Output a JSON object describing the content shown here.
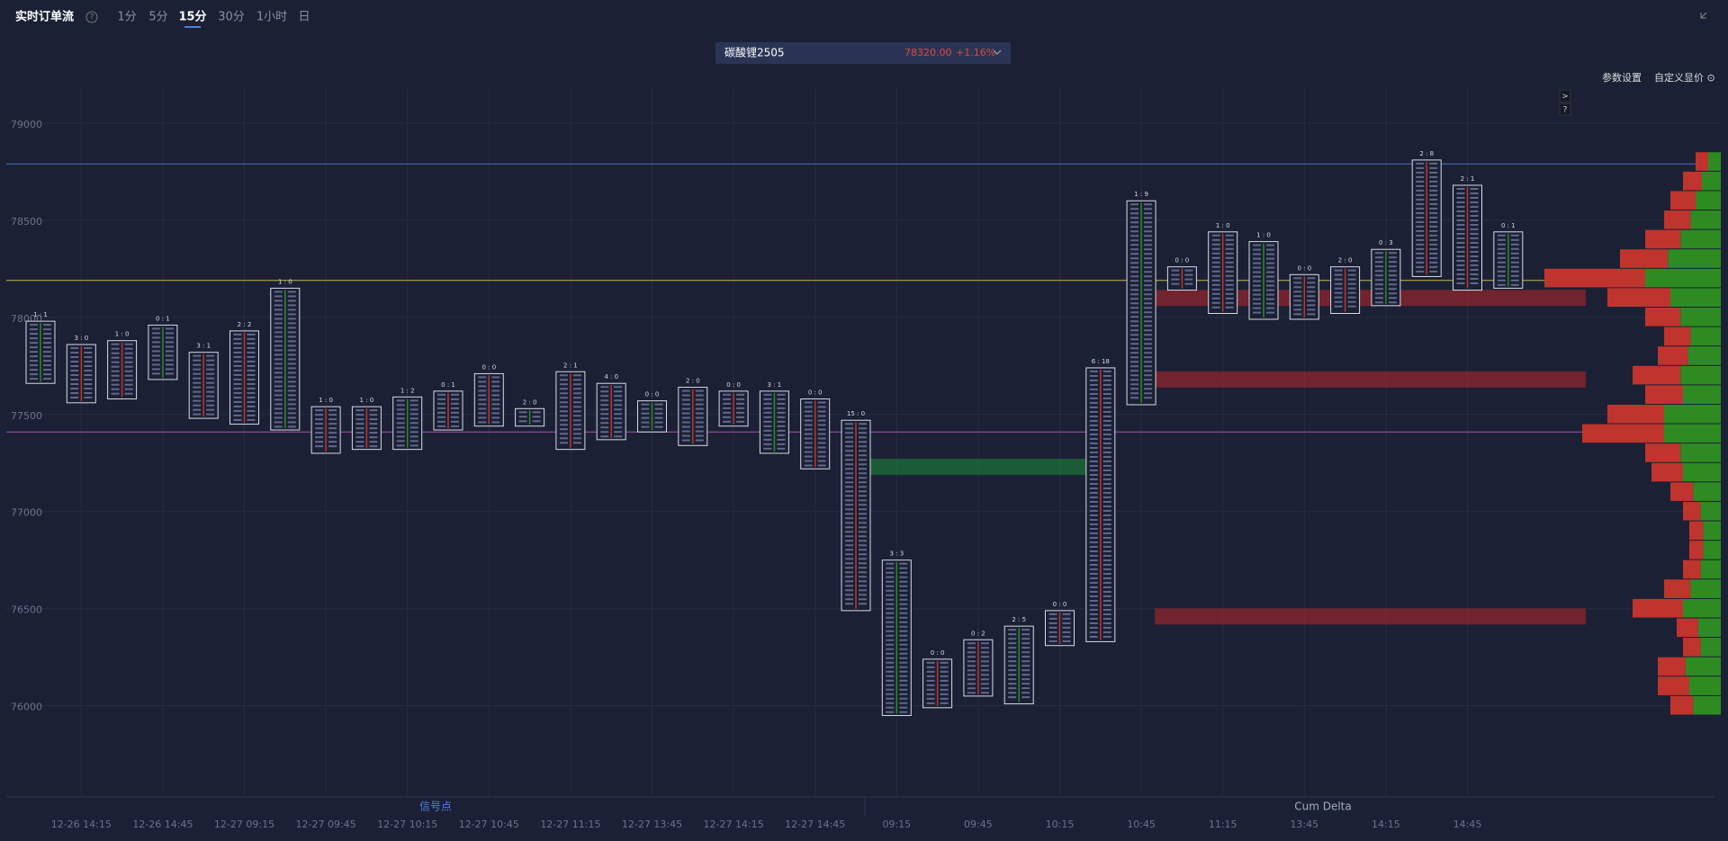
{
  "ui": {
    "title": "实时订单流",
    "help": "?",
    "tabs": [
      "1分",
      "5分",
      "15分",
      "30分",
      "1小时",
      "日"
    ],
    "active_tab": 2,
    "symbol": "碳酸锂2505",
    "price": "78320.00",
    "change": "+1.16%",
    "settings": "参数设置",
    "custom_price": "自定义显价 ⊙",
    "side_buttons": [
      ">",
      "?"
    ],
    "panels": [
      "信号点",
      "Cum Delta"
    ]
  },
  "chart_data": {
    "type": "footprint",
    "categories": [
      null,
      "12-26 14:15",
      null,
      "12-26 14:45",
      null,
      "12-27 09:15",
      null,
      "12-27 09:45",
      null,
      "12-27 10:15",
      null,
      "12-27 10:45",
      null,
      "12-27 11:15",
      null,
      "12-27 13:45",
      null,
      "12-27 14:15",
      null,
      "12-27 14:45",
      null,
      "09:15",
      null,
      "09:45",
      null,
      "10:15",
      null,
      "10:45",
      null,
      "11:15",
      null,
      "13:45",
      null,
      "14:15",
      null,
      "14:45",
      null
    ],
    "high": [
      77980,
      77860,
      77880,
      77960,
      77820,
      77930,
      78150,
      77540,
      77540,
      77590,
      77620,
      77710,
      77530,
      77720,
      77660,
      77570,
      77640,
      77620,
      77620,
      77580,
      77470,
      76750,
      76240,
      76340,
      76410,
      76490,
      77740,
      78600,
      78260,
      78440,
      78390,
      78220,
      78260,
      78350,
      78810,
      78680,
      78440
    ],
    "low": [
      77660,
      77560,
      77580,
      77680,
      77480,
      77450,
      77420,
      77300,
      77320,
      77320,
      77420,
      77440,
      77440,
      77320,
      77370,
      77410,
      77340,
      77440,
      77300,
      77220,
      76490,
      75950,
      75990,
      76050,
      76010,
      76310,
      76330,
      77550,
      78140,
      78020,
      77990,
      77990,
      78020,
      78060,
      78210,
      78140,
      78150
    ],
    "headers": [
      "1 : 1",
      "3 : 0",
      "1 : 0",
      "0 : 1",
      "3 : 1",
      "2 : 2",
      "1 : 0",
      "1 : 0",
      "1 : 0",
      "1 : 2",
      "0 : 1",
      "0 : 0",
      "2 : 0",
      "2 : 1",
      "4 : 0",
      "0 : 0",
      "2 : 0",
      "0 : 0",
      "3 : 1",
      "0 : 0",
      "15 : 0",
      "3 : 3",
      "0 : 0",
      "0 : 2",
      "2 : 5",
      "0 : 0",
      "6 : 18",
      "1 : 9",
      "0 : 0",
      "1 : 0",
      "1 : 0",
      "0 : 0",
      "2 : 0",
      "0 : 3",
      "2 : 8",
      "2 : 1",
      "0 : 1"
    ],
    "ylim": [
      75540,
      79180
    ],
    "yticks": [
      76000,
      76500,
      77000,
      77500,
      78000,
      78500,
      79000
    ],
    "levels": [
      {
        "price": 78790,
        "color": "#4a6fc4"
      },
      {
        "price": 78190,
        "color": "#c9b54a"
      },
      {
        "price": 77410,
        "color": "#b04fb8"
      }
    ],
    "zones": [
      {
        "price": 77230,
        "color": "#1f8a3a"
      },
      {
        "price": 78100,
        "color": "#b8262b"
      },
      {
        "price": 77680,
        "color": "#b8262b"
      },
      {
        "price": 76460,
        "color": "#b8262b"
      }
    ],
    "profile": {
      "prices": [
        76000,
        76100,
        76200,
        76300,
        76400,
        76500,
        76600,
        76700,
        76800,
        76900,
        77000,
        77100,
        77200,
        77300,
        77400,
        77500,
        77600,
        77700,
        77800,
        77900,
        78000,
        78100,
        78200,
        78300,
        78400,
        78500,
        78600,
        78700,
        78800
      ],
      "buy": [
        22,
        25,
        28,
        16,
        18,
        30,
        24,
        16,
        14,
        14,
        16,
        22,
        30,
        32,
        45,
        45,
        30,
        32,
        26,
        24,
        32,
        40,
        60,
        42,
        32,
        24,
        20,
        15,
        10
      ],
      "sell": [
        18,
        25,
        22,
        14,
        17,
        40,
        21,
        14,
        11,
        11,
        14,
        18,
        25,
        28,
        65,
        45,
        30,
        38,
        24,
        21,
        28,
        50,
        80,
        38,
        28,
        21,
        20,
        15,
        10
      ],
      "buy_color": "#2e8b22",
      "sell_color": "#c0342e"
    },
    "grid": true
  }
}
